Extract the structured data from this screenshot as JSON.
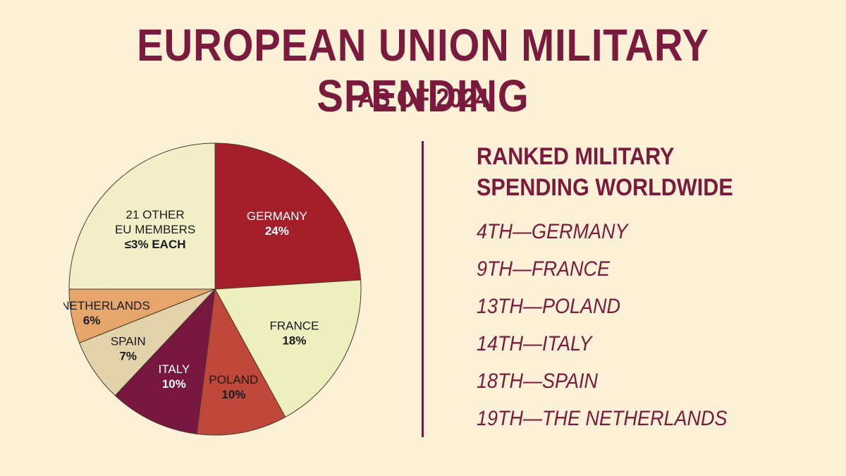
{
  "title": "EUROPEAN UNION MILITARY SPENDING",
  "subtitle": "AS OF 2024",
  "chart_data": {
    "type": "pie",
    "title": "EUROPEAN UNION MILITARY SPENDING",
    "subtitle": "AS OF 2024",
    "slices": [
      {
        "name": "GERMANY",
        "value": 24,
        "display": "24%",
        "color": "#a51f2b",
        "text_color": "#ffffff"
      },
      {
        "name": "FRANCE",
        "value": 18,
        "display": "18%",
        "color": "#eeefbf",
        "text_color": "#1a1a1a"
      },
      {
        "name": "POLAND",
        "value": 10,
        "display": "10%",
        "color": "#c0483a",
        "text_color": "#1a1a1a"
      },
      {
        "name": "ITALY",
        "value": 10,
        "display": "10%",
        "color": "#77163f",
        "text_color": "#ffffff"
      },
      {
        "name": "SPAIN",
        "value": 7,
        "display": "7%",
        "color": "#e3d3ab",
        "text_color": "#1a1a1a"
      },
      {
        "name": "THE NETHERLANDS",
        "value": 6,
        "display": "6%",
        "color": "#e6a56a",
        "text_color": "#1a1a1a"
      },
      {
        "name": "21 OTHER EU MEMBERS",
        "value": 25,
        "display": "≤3% EACH",
        "color": "#f2efc8",
        "text_color": "#1a1a1a"
      }
    ]
  },
  "ranked": {
    "heading_line1": "RANKED MILITARY",
    "heading_line2": "SPENDING WORLDWIDE",
    "items": [
      "4TH—GERMANY",
      "9TH—FRANCE",
      "13TH—POLAND",
      "14TH—ITALY",
      "18TH—SPAIN",
      "19TH—THE NETHERLANDS"
    ]
  }
}
